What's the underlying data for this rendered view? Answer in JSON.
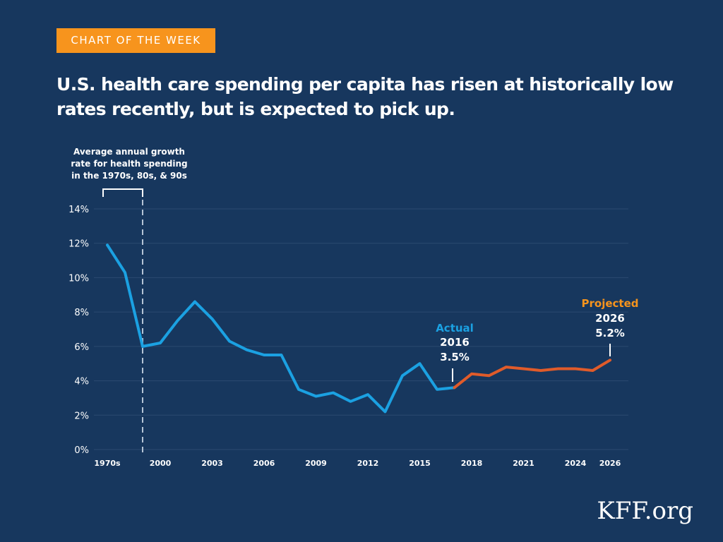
{
  "badge": "CHART OF THE WEEK",
  "headline": "U.S. health care spending per capita has risen at historically low rates recently, but is expected to pick up.",
  "brand": "KFF.org",
  "colors": {
    "background": "#17375e",
    "badge": "#f7941d",
    "actual_line": "#1ba1e2",
    "projected_line": "#e05b2a",
    "projected_label": "#f7941d",
    "actual_label": "#1ba1e2",
    "grid": "#2b4a70",
    "marker": "#b5c4d6"
  },
  "chart_data": {
    "type": "line",
    "title": "",
    "xlabel": "",
    "ylabel": "",
    "ylim": [
      0,
      14
    ],
    "y_ticks": [
      "0%",
      "2%",
      "4%",
      "6%",
      "8%",
      "10%",
      "12%",
      "14%"
    ],
    "x_tick_labels": [
      "1970s",
      "2000",
      "2003",
      "2006",
      "2009",
      "2012",
      "2015",
      "2018",
      "2021",
      "2024",
      "2026"
    ],
    "grid": "horizontal",
    "note": {
      "lines": [
        "Average annual growth",
        "rate for health spending",
        "in the 1970s, 80s, & 90s"
      ]
    },
    "series": [
      {
        "name": "Actual",
        "color": "#1ba1e2",
        "points": [
          [
            "1970s",
            11.9
          ],
          [
            "1980s",
            10.3
          ],
          [
            "1990s",
            6.0
          ],
          [
            "2000",
            6.2
          ],
          [
            "2001",
            7.5
          ],
          [
            "2002",
            8.6
          ],
          [
            "2003",
            7.6
          ],
          [
            "2004",
            6.3
          ],
          [
            "2005",
            5.8
          ],
          [
            "2006",
            5.5
          ],
          [
            "2007",
            5.5
          ],
          [
            "2008",
            3.5
          ],
          [
            "2009",
            3.1
          ],
          [
            "2010",
            3.3
          ],
          [
            "2011",
            2.8
          ],
          [
            "2012",
            3.2
          ],
          [
            "2013",
            2.2
          ],
          [
            "2014",
            4.3
          ],
          [
            "2015",
            5.0
          ],
          [
            "2016",
            3.5
          ],
          [
            "2017",
            3.6
          ]
        ]
      },
      {
        "name": "Projected",
        "color": "#e05b2a",
        "points": [
          [
            "2017",
            3.6
          ],
          [
            "2018",
            4.4
          ],
          [
            "2019",
            4.3
          ],
          [
            "2020",
            4.8
          ],
          [
            "2021",
            4.7
          ],
          [
            "2022",
            4.6
          ],
          [
            "2023",
            4.7
          ],
          [
            "2024",
            4.7
          ],
          [
            "2025",
            4.6
          ],
          [
            "2026",
            5.2
          ]
        ]
      }
    ],
    "annotations": [
      {
        "label": "Actual",
        "year": "2016",
        "value": "3.5%"
      },
      {
        "label": "Projected",
        "year": "2026",
        "value": "5.2%"
      }
    ]
  }
}
